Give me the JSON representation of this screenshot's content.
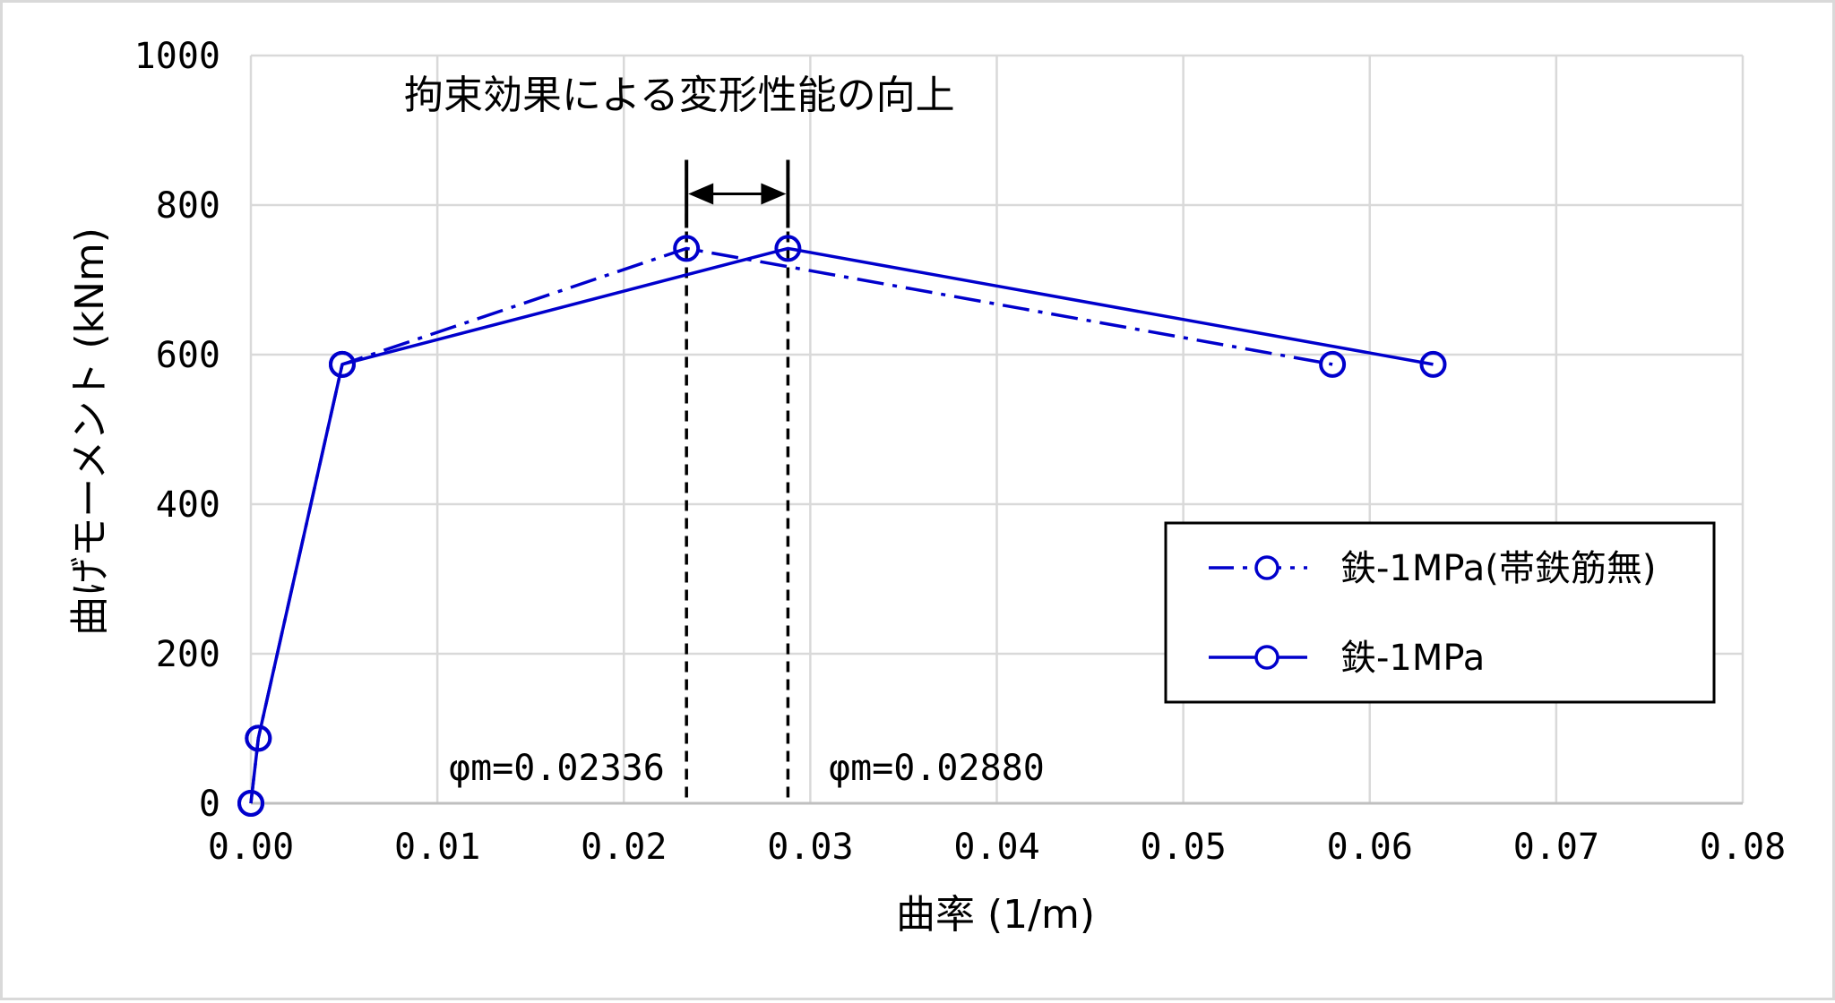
{
  "chart_data": {
    "type": "line",
    "xlabel": "曲率 (1/m)",
    "ylabel": "曲げモーメント (kNm)",
    "xlim": [
      0,
      0.08
    ],
    "ylim": [
      0,
      1000
    ],
    "x_ticks": [
      0,
      0.01,
      0.02,
      0.03,
      0.04,
      0.05,
      0.06,
      0.07,
      0.08
    ],
    "x_tick_labels": [
      "0.00",
      "0.01",
      "0.02",
      "0.03",
      "0.04",
      "0.05",
      "0.06",
      "0.07",
      "0.08"
    ],
    "y_ticks": [
      0,
      200,
      400,
      600,
      800,
      1000
    ],
    "y_tick_labels": [
      "0",
      "200",
      "400",
      "600",
      "800",
      "1000"
    ],
    "grid": true,
    "legend_position": "right",
    "series": [
      {
        "name": "鉄-1MPa(帯鉄筋無)",
        "line_style": "dash-dot",
        "marker": "circle",
        "color": "#0000cc",
        "x": [
          0,
          0.0004,
          0.0049,
          0.02336,
          0.058
        ],
        "y": [
          0,
          87,
          587,
          742,
          587
        ]
      },
      {
        "name": "鉄-1MPa",
        "line_style": "solid",
        "marker": "circle",
        "color": "#0000cc",
        "x": [
          0,
          0.0004,
          0.0049,
          0.0288,
          0.0634
        ],
        "y": [
          0,
          87,
          587,
          742,
          587
        ]
      }
    ],
    "annotations": {
      "title_text": "拘束効果による変形性能の向上",
      "phi_left": "φm=0.02336",
      "phi_right": "φm=0.02880",
      "phi_left_x": 0.02336,
      "phi_right_x": 0.0288,
      "arrow_y": 815
    }
  }
}
